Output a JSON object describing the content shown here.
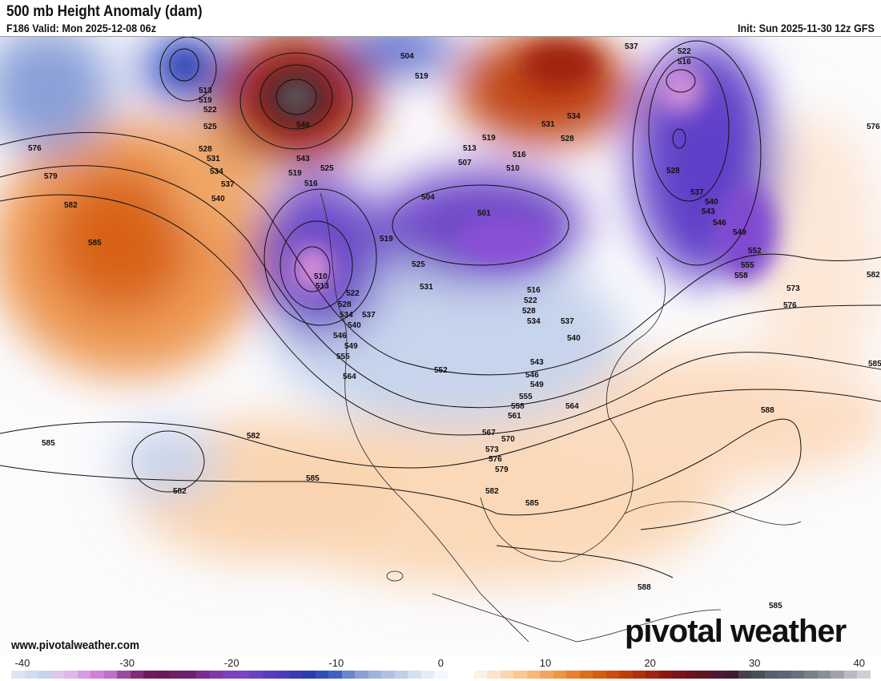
{
  "header": {
    "title": "500 mb Height Anomaly (dam)",
    "valid": "F186 Valid: Mon 2025-12-08 06z",
    "init": "Init: Sun 2025-11-30 12z GFS"
  },
  "footer": {
    "website": "www.pivotalweather.com",
    "logo": "pivotal weather"
  },
  "colorbar": {
    "ticks": [
      "-40",
      "-30",
      "-20",
      "-10",
      "0",
      "10",
      "20",
      "30",
      "40"
    ],
    "range": [
      -40,
      40
    ],
    "colors": [
      "#dce6f2",
      "#d0dcef",
      "#c8d4ec",
      "#dcc8e8",
      "#e0b8e8",
      "#d89ae0",
      "#d080d8",
      "#c070c8",
      "#9a4a9a",
      "#842c7a",
      "#6e1a60",
      "#6a1a5a",
      "#701e66",
      "#6a2070",
      "#7a2c90",
      "#8038a8",
      "#8040c0",
      "#7a44c8",
      "#6a40c8",
      "#5a3cc4",
      "#4a3cc0",
      "#3a3cb8",
      "#2c3cb0",
      "#3050b8",
      "#4060c0",
      "#6a86cc",
      "#8aa0d4",
      "#a0b4dc",
      "#b0c2e2",
      "#c0d0e8",
      "#d4dff0",
      "#e4ecf6",
      "#f4f8fc",
      "#ffffff",
      "#ffffff",
      "#fdf0e4",
      "#fde4cc",
      "#fcd6b0",
      "#fbc894",
      "#f8b878",
      "#f4a460",
      "#ee9444",
      "#e8802c",
      "#e06c18",
      "#d85c10",
      "#cc4c0c",
      "#c03c0a",
      "#b0300e",
      "#a02410",
      "#8c1812",
      "#7a1416",
      "#6a141c",
      "#5c1624",
      "#4c1a30",
      "#3e1a36",
      "#444448",
      "#4a4e56",
      "#566070",
      "#5c6676",
      "#68707c",
      "#7a808a",
      "#8a9098",
      "#a0a4aa",
      "#b8bcc0",
      "#ccd0d2"
    ]
  },
  "map": {
    "contour_labels": [
      "576",
      "579",
      "582",
      "585",
      "513",
      "519",
      "522",
      "525",
      "528",
      "531",
      "534",
      "537",
      "540",
      "543",
      "546",
      "504",
      "519",
      "513",
      "519",
      "516",
      "507",
      "510",
      "537",
      "522",
      "516",
      "531",
      "534",
      "528",
      "528",
      "537",
      "540",
      "543",
      "546",
      "549",
      "552",
      "555",
      "558",
      "573",
      "576",
      "582",
      "576",
      "504",
      "501",
      "519",
      "525",
      "531",
      "516",
      "522",
      "528",
      "534",
      "537",
      "540",
      "510",
      "513",
      "522",
      "528",
      "534",
      "537",
      "540",
      "546",
      "549",
      "555",
      "564",
      "552",
      "543",
      "546",
      "549",
      "555",
      "558",
      "561",
      "564",
      "567",
      "570",
      "573",
      "576",
      "579",
      "582",
      "585",
      "582",
      "585",
      "582",
      "585",
      "588",
      "585",
      "588",
      "585",
      "525",
      "519",
      "516"
    ]
  }
}
